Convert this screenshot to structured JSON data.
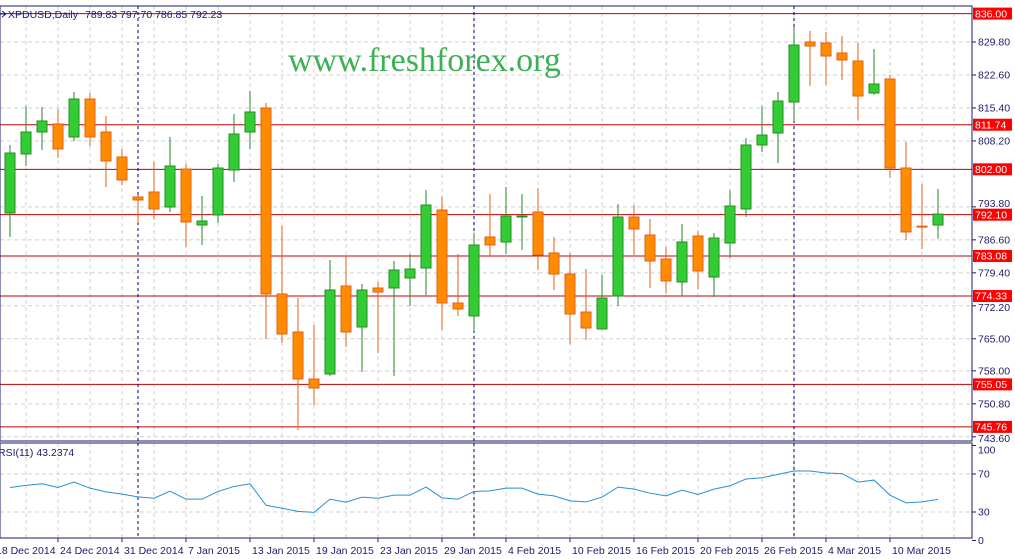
{
  "header": {
    "symbol": "XPDUSD,Daily",
    "ohlc": "789.83 797.70 786.85 792.23"
  },
  "watermark": "www.freshforex.org",
  "colors": {
    "bull": "#32cd32",
    "bear": "#ff8c00",
    "level": "#c00000",
    "level_label_bg": "#ff0000",
    "axis": "#1c1c6b",
    "grid": "#d0d0d0",
    "rsi_line": "#2a8fd0"
  },
  "price_axis": {
    "ticks": [
      "829.80",
      "822.60",
      "815.40",
      "808.20",
      "793.80",
      "786.60",
      "779.40",
      "772.20",
      "765.00",
      "758.00",
      "750.80",
      "743.60"
    ]
  },
  "levels": [
    "836.00",
    "811.74",
    "802.00",
    "792.10",
    "783.08",
    "774.33",
    "755.05",
    "745.76"
  ],
  "rsi": {
    "label": "RSI(11) 43.2374",
    "ticks": [
      "100",
      "70",
      "30",
      "0"
    ],
    "values": [
      55.8,
      58,
      59.7,
      55.8,
      61.5,
      55.1,
      51.2,
      48.8,
      45.9,
      44.5,
      51.9,
      43.5,
      43.5,
      51.6,
      56.9,
      59.7,
      37.1,
      33.9,
      30.7,
      29.6,
      43.5,
      40.3,
      45.6,
      44.5,
      47.7,
      47.7,
      56.2,
      44.9,
      43.5,
      51.6,
      52.3,
      55.1,
      55.1,
      48.8,
      47,
      41.7,
      40.6,
      45.6,
      56.2,
      54.1,
      49.8,
      47,
      53,
      48.4,
      54.1,
      57.6,
      64.7,
      66.1,
      69.6,
      73.2,
      73.2,
      71.1,
      70.4,
      61.5,
      63.6,
      47.7,
      39.6,
      40.6,
      43.24
    ]
  },
  "dates": [
    "18 Dec 2014",
    "24 Dec 2014",
    "31 Dec 2014",
    "7 Jan 2015",
    "13 Jan 2015",
    "19 Jan 2015",
    "23 Jan 2015",
    "29 Jan 2015",
    "4 Feb 2015",
    "10 Feb 2015",
    "16 Feb 2015",
    "20 Feb 2015",
    "26 Feb 2015",
    "4 Mar 2015",
    "10 Mar 2015"
  ],
  "chart_data": {
    "type": "candlestick",
    "symbol": "XPDUSD",
    "timeframe": "Daily",
    "ylim": [
      743.6,
      837.5
    ],
    "grid": true,
    "ohlc": [
      [
        792.46,
        807.31,
        787.22,
        805.56
      ],
      [
        805.35,
        815.83,
        802.73,
        810.15
      ],
      [
        810.15,
        815.61,
        806.22,
        812.55
      ],
      [
        811.9,
        815.17,
        804.47,
        806.44
      ],
      [
        809.06,
        818.88,
        808.18,
        817.35
      ],
      [
        817.35,
        818.66,
        807.09,
        809.06
      ],
      [
        810.15,
        813.64,
        798.14,
        803.82
      ],
      [
        804.69,
        806.44,
        798.58,
        799.67
      ],
      [
        795.96,
        796.39,
        790.28,
        795.3
      ],
      [
        797.05,
        803.6,
        791.15,
        793.34
      ],
      [
        793.77,
        809.06,
        792.68,
        802.73
      ],
      [
        802.07,
        803.16,
        785.04,
        790.5
      ],
      [
        789.84,
        796.18,
        785.48,
        790.72
      ],
      [
        792.03,
        803.16,
        790.28,
        802.29
      ],
      [
        801.85,
        814.08,
        799.23,
        809.71
      ],
      [
        810.15,
        819.1,
        806.44,
        814.52
      ],
      [
        815.39,
        816.48,
        764.95,
        774.78
      ],
      [
        774.78,
        789.63,
        764.08,
        766.04
      ],
      [
        766.48,
        773.9,
        745.08,
        756.22
      ],
      [
        756.22,
        768.01,
        750.54,
        754.25
      ],
      [
        757.31,
        782.2,
        756.9,
        775.65
      ],
      [
        776.52,
        783.07,
        763.21,
        766.48
      ],
      [
        767.57,
        776.96,
        757.75,
        775.65
      ],
      [
        776.09,
        777.4,
        761.9,
        775.21
      ],
      [
        776.09,
        781.98,
        756.87,
        780.02
      ],
      [
        778.27,
        783.51,
        772.16,
        780.24
      ],
      [
        780.45,
        797.49,
        774.56,
        794.21
      ],
      [
        793.12,
        795.96,
        766.92,
        772.81
      ],
      [
        772.81,
        783.51,
        769.98,
        771.5
      ],
      [
        769.98,
        788.1,
        766.7,
        785.48
      ],
      [
        787.22,
        796.61,
        783.07,
        785.48
      ],
      [
        786.13,
        798.14,
        783.51,
        791.81
      ],
      [
        791.59,
        796.61,
        784.38,
        791.81
      ],
      [
        792.68,
        797.92,
        780.02,
        783.29
      ],
      [
        783.73,
        787.22,
        775.65,
        779.14
      ],
      [
        779.14,
        783.73,
        763.86,
        770.41
      ],
      [
        770.85,
        780.24,
        764.73,
        767.35
      ],
      [
        767.14,
        778.93,
        767.0,
        773.9
      ],
      [
        774.34,
        794.43,
        772.16,
        791.59
      ],
      [
        791.59,
        794.21,
        783.29,
        788.97
      ],
      [
        787.66,
        791.15,
        776.09,
        781.98
      ],
      [
        782.42,
        785.04,
        775.0,
        777.62
      ],
      [
        777.4,
        790.06,
        774.34,
        786.13
      ],
      [
        787.44,
        788.53,
        775.87,
        779.8
      ],
      [
        778.49,
        788.1,
        774.12,
        787.0
      ],
      [
        785.91,
        797.49,
        782.64,
        793.99
      ],
      [
        793.34,
        808.84,
        791.59,
        807.31
      ],
      [
        807.31,
        815.83,
        805.78,
        809.49
      ],
      [
        809.93,
        818.88,
        803.38,
        816.92
      ],
      [
        816.7,
        833.07,
        812.55,
        829.14
      ],
      [
        829.8,
        832.2,
        820.19,
        828.93
      ],
      [
        829.58,
        831.98,
        820.41,
        826.74
      ],
      [
        827.4,
        831.11,
        821.5,
        825.87
      ],
      [
        825.65,
        829.58,
        812.77,
        818.01
      ],
      [
        818.66,
        828.27,
        818.23,
        820.63
      ],
      [
        821.72,
        822.59,
        800.11,
        802.29
      ],
      [
        802.29,
        807.97,
        786.57,
        788.32
      ],
      [
        789.6,
        798.8,
        784.6,
        789.4
      ],
      [
        789.83,
        797.7,
        786.85,
        792.23
      ]
    ]
  }
}
